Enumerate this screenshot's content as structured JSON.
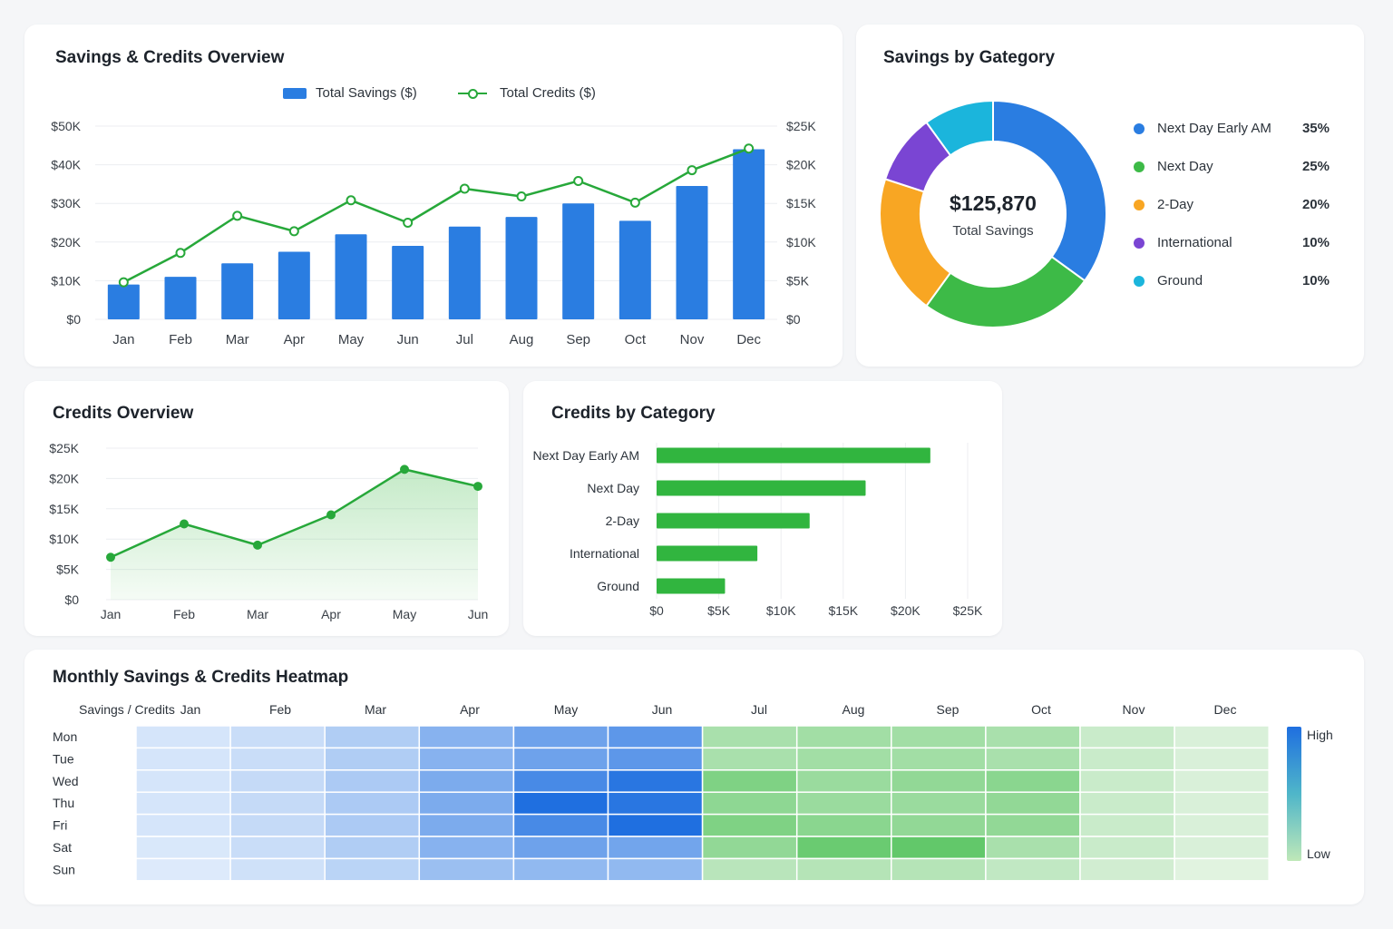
{
  "colors": {
    "savings_blue": "#2a7de1",
    "credits_green": "#27a83a",
    "next_day_early_am": "#2a7de1",
    "next_day": "#3dba47",
    "two_day": "#f8a623",
    "international": "#7a45d3",
    "ground": "#1bb5dc"
  },
  "overview": {
    "title": "Savings & Credits Overview",
    "legend_savings": "Total Savings ($)",
    "legend_credits": "Total Credits ($)"
  },
  "category": {
    "title": "Savings by Gategory",
    "center_value": "$125,870",
    "center_label": "Total Savings"
  },
  "credits_overview": {
    "title": "Credits Overview"
  },
  "credits_category": {
    "title": "Credits by Category"
  },
  "heatmap": {
    "title": "Monthly Savings & Credits Heatmap",
    "corner_label": "Savings / Credits",
    "scale_high": "High",
    "scale_low": "Low"
  },
  "chart_data": [
    {
      "id": "overview",
      "type": "bar",
      "categories": [
        "Jan",
        "Feb",
        "Mar",
        "Apr",
        "May",
        "Jun",
        "Jul",
        "Aug",
        "Sep",
        "Oct",
        "Nov",
        "Dec"
      ],
      "series": [
        {
          "name": "Total Savings ($)",
          "type": "bar",
          "axis": "left",
          "values": [
            9000,
            11000,
            14500,
            17500,
            22000,
            19000,
            24000,
            26500,
            30000,
            25500,
            34500,
            44000
          ]
        },
        {
          "name": "Total Credits ($)",
          "type": "line",
          "axis": "right",
          "values": [
            4800,
            8600,
            13400,
            11400,
            15400,
            12500,
            16900,
            15900,
            17900,
            15100,
            19300,
            22100
          ]
        }
      ],
      "y_left": {
        "ticks": [
          "$0",
          "$10K",
          "$20K",
          "$30K",
          "$40K",
          "$50K"
        ],
        "range": [
          0,
          50000
        ]
      },
      "y_right": {
        "ticks": [
          "$0",
          "$5K",
          "$10K",
          "$15K",
          "$20K",
          "$25K"
        ],
        "range": [
          0,
          25000
        ]
      },
      "legend_position": "top-center",
      "grid": true
    },
    {
      "id": "category",
      "type": "pie",
      "slices": [
        {
          "label": "Next Day Early AM",
          "value": 35,
          "pct": "35%"
        },
        {
          "label": "Next Day",
          "value": 25,
          "pct": "25%"
        },
        {
          "label": "2-Day",
          "value": 20,
          "pct": "20%"
        },
        {
          "label": "International",
          "value": 10,
          "pct": "10%"
        },
        {
          "label": "Ground",
          "value": 10,
          "pct": "10%"
        }
      ],
      "legend_position": "right"
    },
    {
      "id": "credits_overview",
      "type": "area",
      "categories": [
        "Jan",
        "Feb",
        "Mar",
        "Apr",
        "May",
        "Jun"
      ],
      "values": [
        7000,
        12500,
        9000,
        14000,
        21500,
        18700
      ],
      "y_ticks": [
        "$0",
        "$5K",
        "$10K",
        "$15K",
        "$20K",
        "$25K"
      ],
      "ylim": [
        0,
        25000
      ],
      "grid": true
    },
    {
      "id": "credits_category",
      "type": "bar",
      "orientation": "horizontal",
      "categories": [
        "Next Day Early AM",
        "Next Day",
        "2-Day",
        "International",
        "Ground"
      ],
      "values": [
        22000,
        16800,
        12300,
        8100,
        5500
      ],
      "x_ticks": [
        "$0",
        "$5K",
        "$10K",
        "$15K",
        "$20K",
        "$25K"
      ],
      "xlim": [
        0,
        25000
      ],
      "grid": true
    },
    {
      "id": "heatmap",
      "type": "heatmap",
      "columns": [
        "Jan",
        "Feb",
        "Mar",
        "Apr",
        "May",
        "Jun",
        "Jul",
        "Aug",
        "Sep",
        "Oct",
        "Nov",
        "Dec"
      ],
      "rows": [
        "Mon",
        "Tue",
        "Wed",
        "Thu",
        "Fri",
        "Sat",
        "Sun"
      ],
      "column_metric": [
        "savings",
        "savings",
        "savings",
        "savings",
        "savings",
        "savings",
        "credits",
        "credits",
        "credits",
        "credits",
        "credits",
        "credits"
      ],
      "values": [
        [
          0.12,
          0.18,
          0.3,
          0.5,
          0.62,
          0.7,
          0.45,
          0.5,
          0.5,
          0.45,
          0.25,
          0.15
        ],
        [
          0.12,
          0.18,
          0.3,
          0.5,
          0.62,
          0.7,
          0.45,
          0.5,
          0.5,
          0.45,
          0.25,
          0.15
        ],
        [
          0.12,
          0.2,
          0.32,
          0.55,
          0.8,
          0.95,
          0.72,
          0.55,
          0.6,
          0.65,
          0.25,
          0.15
        ],
        [
          0.12,
          0.2,
          0.32,
          0.55,
          1.0,
          0.95,
          0.62,
          0.55,
          0.55,
          0.6,
          0.25,
          0.15
        ],
        [
          0.12,
          0.2,
          0.32,
          0.55,
          0.8,
          1.0,
          0.72,
          0.65,
          0.6,
          0.6,
          0.25,
          0.15
        ],
        [
          0.1,
          0.18,
          0.3,
          0.5,
          0.62,
          0.6,
          0.6,
          0.85,
          0.9,
          0.45,
          0.25,
          0.15
        ],
        [
          0.08,
          0.15,
          0.25,
          0.4,
          0.45,
          0.45,
          0.35,
          0.38,
          0.38,
          0.3,
          0.2,
          0.1
        ]
      ]
    }
  ]
}
